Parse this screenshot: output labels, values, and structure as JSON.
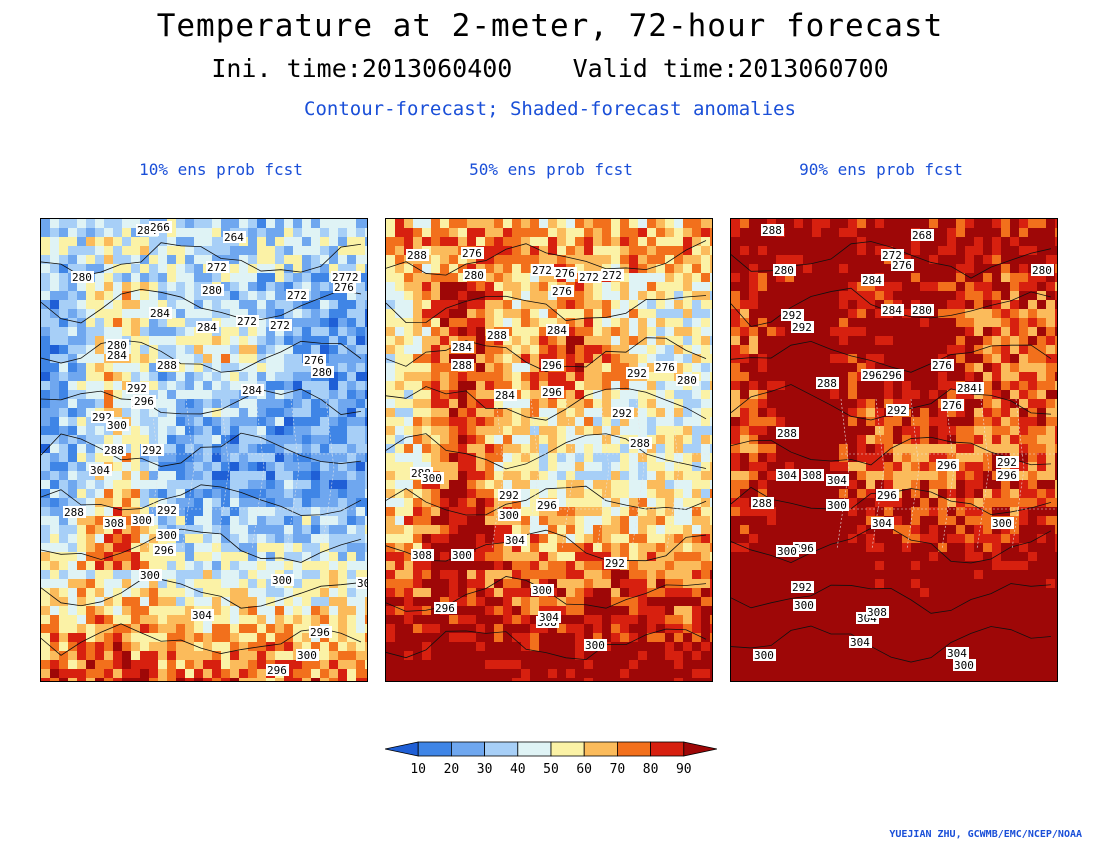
{
  "header": {
    "title": "Temperature at 2-meter, 72-hour forecast",
    "init_label": "Ini. time:2013060400",
    "valid_label": "Valid time:2013060700",
    "subtitle": "Contour-forecast; Shaded-forecast anomalies"
  },
  "panels": [
    {
      "title": "10% ens prob fcst",
      "contour_labels": [
        "284",
        "266",
        "264",
        "272",
        "2772",
        "276",
        "280",
        "272",
        "280",
        "284",
        "272",
        "272",
        "284",
        "276",
        "280",
        "280",
        "284",
        "288",
        "292",
        "288",
        "284",
        "292",
        "296",
        "300",
        "288",
        "292",
        "304",
        "308",
        "300",
        "292",
        "288",
        "300",
        "296",
        "300",
        "304",
        "300",
        "296",
        "300",
        "296",
        "300"
      ],
      "warm_fraction": 0.25
    },
    {
      "title": "50% ens prob fcst",
      "contour_labels": [
        "288",
        "276",
        "280",
        "272",
        "276",
        "272",
        "272",
        "276",
        "284",
        "288",
        "284",
        "288",
        "296",
        "292",
        "276",
        "280",
        "284",
        "296",
        "292",
        "288",
        "288",
        "300",
        "308",
        "292",
        "296",
        "300",
        "304",
        "300",
        "292",
        "300",
        "308",
        "304",
        "300",
        "296"
      ],
      "warm_fraction": 0.5
    },
    {
      "title": "90% ens prob fcst",
      "contour_labels": [
        "288",
        "268",
        "272",
        "280",
        "276",
        "280",
        "284",
        "284",
        "292",
        "280",
        "276",
        "284",
        "288",
        "292",
        "296",
        "296",
        "292",
        "276",
        "284",
        "288",
        "304",
        "308",
        "304",
        "296",
        "288",
        "300",
        "304",
        "296",
        "300",
        "292",
        "300",
        "292",
        "296",
        "300",
        "296",
        "304",
        "308",
        "304",
        "300",
        "304",
        "300"
      ],
      "warm_fraction": 0.75
    }
  ],
  "colorbar": {
    "ticks": [
      "10",
      "20",
      "30",
      "40",
      "50",
      "60",
      "70",
      "80",
      "90"
    ],
    "colors": [
      "#1f5fd6",
      "#3f85e6",
      "#6fa7ef",
      "#a7cff7",
      "#dff3f5",
      "#fbf2a6",
      "#fbbb5b",
      "#f2701c",
      "#d7200f",
      "#9e0707"
    ]
  },
  "credit": "YUEJIAN ZHU, GCWMB/EMC/NCEP/NOAA"
}
